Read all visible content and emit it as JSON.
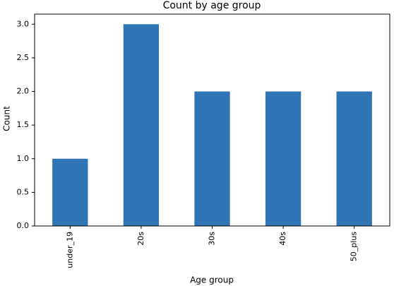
{
  "chart_data": {
    "type": "bar",
    "title": "Count by age group",
    "x_label": "Age group",
    "y_label": "Count",
    "categories": [
      "under_19",
      "20s",
      "30s",
      "40s",
      "50_plus"
    ],
    "values": [
      1,
      3,
      2,
      2,
      2
    ],
    "color": "#2f75b5",
    "ylim": [
      0,
      3.15
    ],
    "yticks": [
      {
        "value": 0,
        "label": "0.0"
      },
      {
        "value": 0.5,
        "label": "0.5"
      },
      {
        "value": 1,
        "label": "1.0"
      },
      {
        "value": 1.5,
        "label": "1.5"
      },
      {
        "value": 2,
        "label": "2.0"
      },
      {
        "value": 2.5,
        "label": "2.5"
      },
      {
        "value": 3,
        "label": "3.0"
      }
    ],
    "grid": false
  }
}
